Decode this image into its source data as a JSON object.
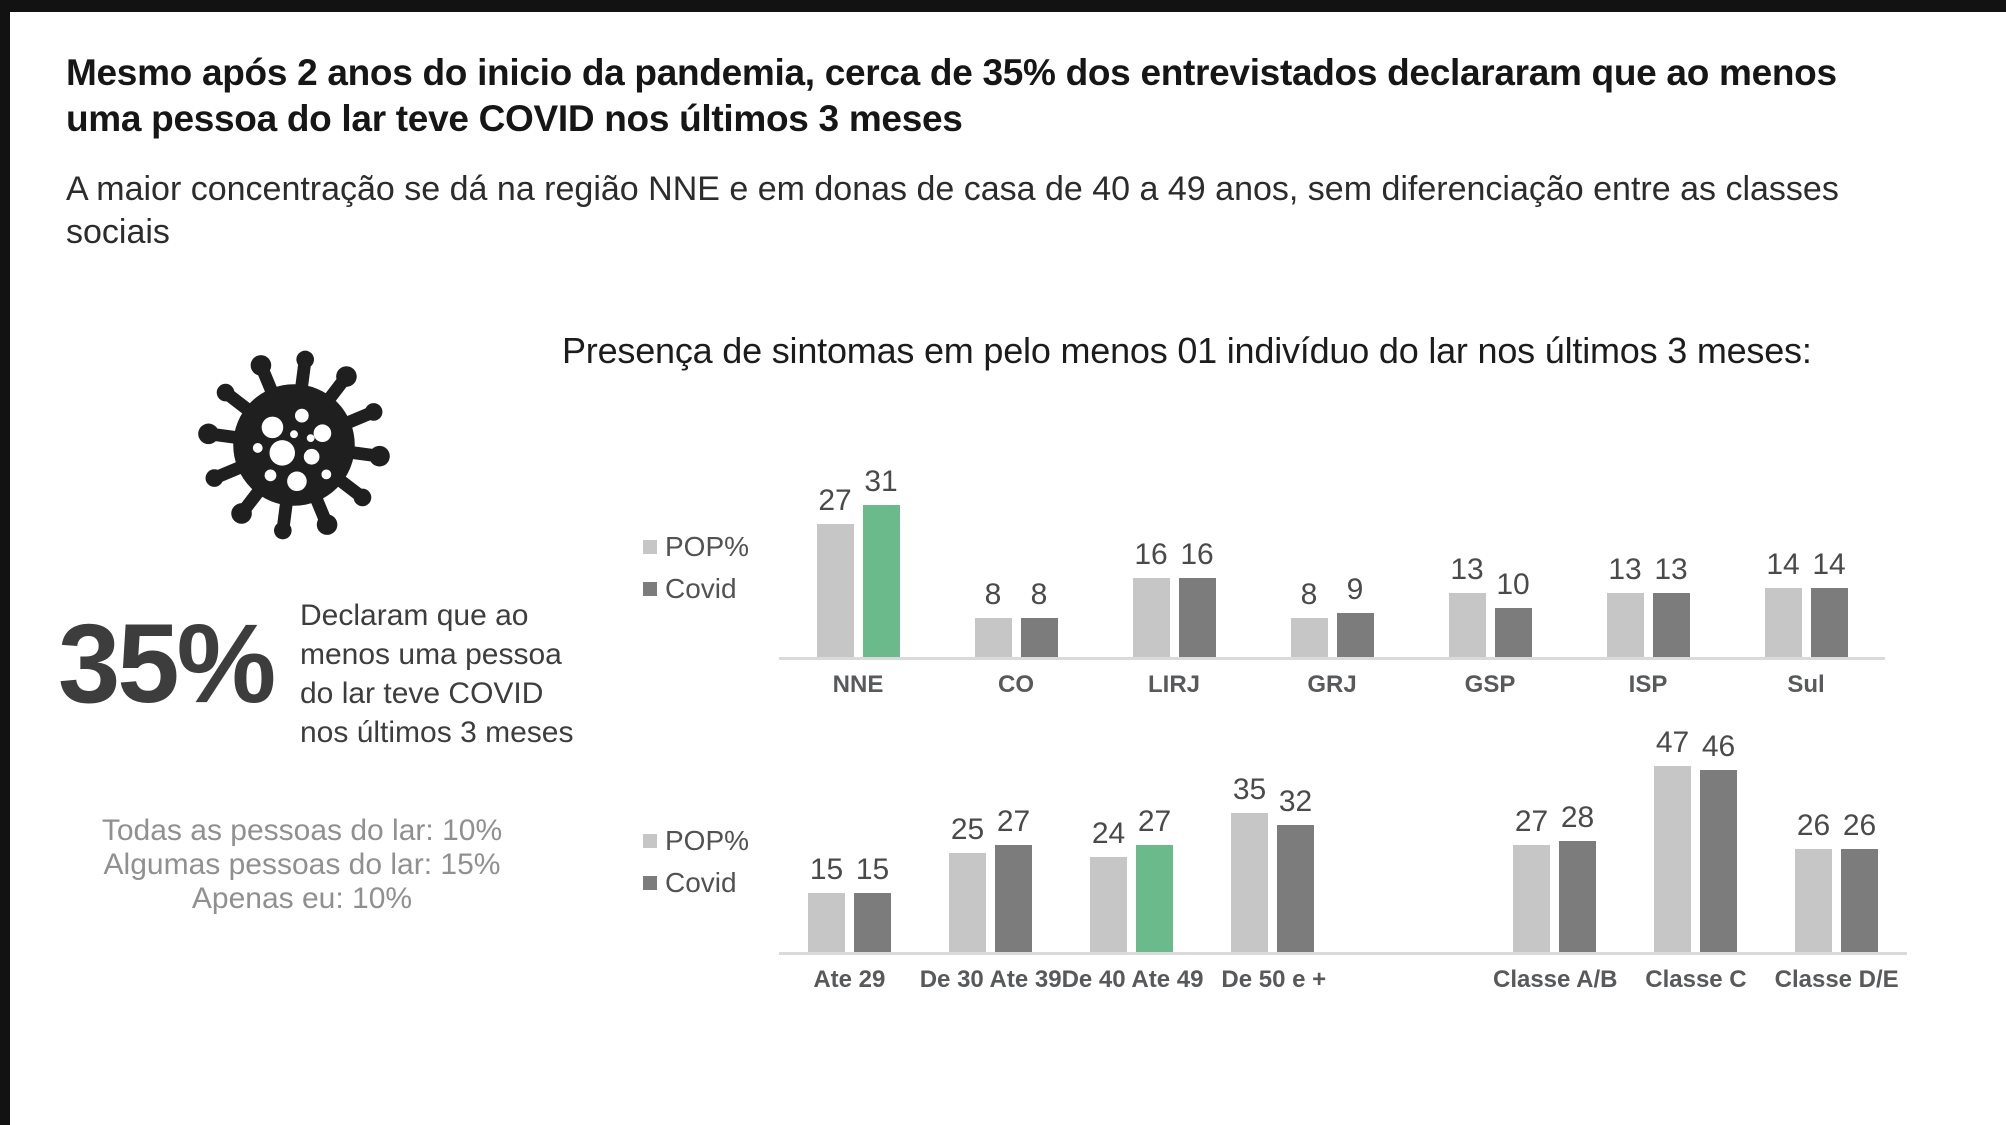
{
  "page": {
    "title": "Mesmo após 2 anos do inicio da pandemia, cerca de 35% dos entrevistados declararam que ao menos uma pessoa do lar teve COVID nos últimos 3 meses",
    "subtitle": "A maior concentração se dá na região NNE e em donas de casa de 40 a 49 anos, sem diferenciação entre as classes sociais",
    "chart_header": "Presença de sintomas em pelo menos 01 indivíduo do lar nos últimos 3 meses:"
  },
  "stat": {
    "value": "35%",
    "description": "Declaram que ao menos uma pessoa do lar teve COVID nos últimos 3 meses",
    "breakdown": [
      "Todas as pessoas do lar: 10%",
      "Algumas pessoas do lar: 15%",
      "Apenas eu: 10%"
    ]
  },
  "icons": {
    "virus": "coronavirus-icon"
  },
  "colors": {
    "pop": "#c6c6c6",
    "covid": "#7c7c7c",
    "highlight": "#6bba8c",
    "axis": "#dadada",
    "icon_black": "#1f1f1f"
  },
  "chart_data": [
    {
      "type": "bar",
      "title": "Presença de sintomas por região",
      "legend": [
        "POP%",
        "Covid"
      ],
      "legend_position": "left",
      "grid": false,
      "categories": [
        "NNE",
        "CO",
        "LIRJ",
        "GRJ",
        "GSP",
        "ISP",
        "Sul"
      ],
      "series": [
        {
          "name": "POP%",
          "values": [
            27,
            8,
            16,
            8,
            13,
            13,
            14
          ]
        },
        {
          "name": "Covid",
          "values": [
            31,
            8,
            16,
            9,
            10,
            13,
            14
          ]
        }
      ],
      "highlight_series": "Covid",
      "highlight_category": "NNE",
      "ylim": [
        0,
        35
      ]
    },
    {
      "type": "bar",
      "title": "Presença de sintomas por idade e classe social",
      "legend": [
        "POP%",
        "Covid"
      ],
      "legend_position": "left",
      "grid": false,
      "categories": [
        "Ate 29",
        "De 30 Ate 39",
        "De 40 Ate 49",
        "De 50 e +",
        "",
        "Classe A/B",
        "Classe C",
        "Classe D/E"
      ],
      "series": [
        {
          "name": "POP%",
          "values": [
            15,
            25,
            24,
            35,
            null,
            27,
            47,
            26
          ]
        },
        {
          "name": "Covid",
          "values": [
            15,
            27,
            27,
            32,
            null,
            28,
            46,
            26
          ]
        }
      ],
      "highlight_series": "Covid",
      "highlight_category": "De 40 Ate 49",
      "ylim": [
        0,
        50
      ]
    }
  ]
}
